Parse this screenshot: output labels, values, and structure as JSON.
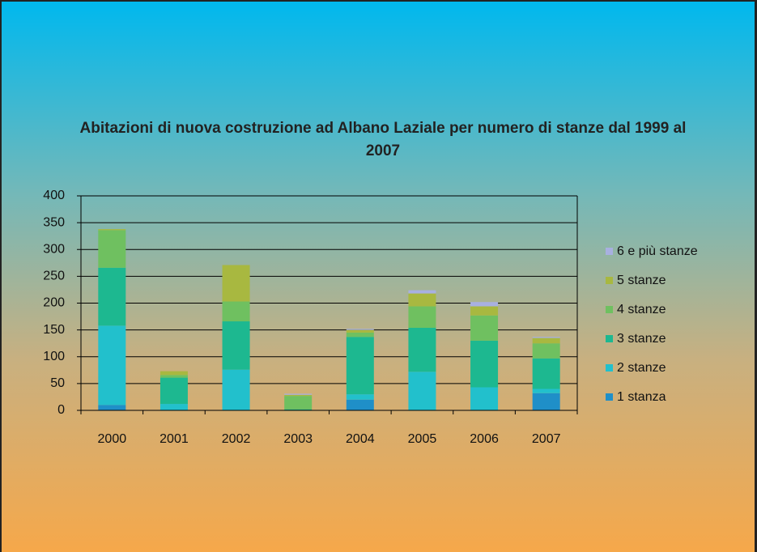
{
  "chart_data": {
    "type": "stacked-bar",
    "title": "Abitazioni di nuova costruzione ad Albano Laziale per numero di stanze dal 1999 al 2007",
    "categories": [
      "2000",
      "2001",
      "2002",
      "2003",
      "2004",
      "2005",
      "2006",
      "2007"
    ],
    "series": [
      {
        "name": "1 stanza",
        "color": "#1f8fc8",
        "values": [
          10,
          0,
          0,
          0,
          20,
          0,
          0,
          32
        ]
      },
      {
        "name": "2 stanze",
        "color": "#22c0cc",
        "values": [
          148,
          12,
          76,
          0,
          10,
          72,
          43,
          8
        ]
      },
      {
        "name": "3 stanze",
        "color": "#1db890",
        "values": [
          108,
          49,
          90,
          2,
          107,
          82,
          87,
          57
        ]
      },
      {
        "name": "4 stanze",
        "color": "#6fc060",
        "values": [
          70,
          5,
          37,
          25,
          8,
          40,
          47,
          28
        ]
      },
      {
        "name": "5 stanze",
        "color": "#a8b840",
        "values": [
          2,
          7,
          68,
          2,
          5,
          24,
          17,
          10
        ]
      },
      {
        "name": "6 e più stanze",
        "color": "#a8b0e0",
        "values": [
          0,
          0,
          0,
          2,
          2,
          6,
          8,
          2
        ]
      }
    ],
    "ylim": [
      0,
      400
    ],
    "yticks": [
      0,
      50,
      100,
      150,
      200,
      250,
      300,
      350,
      400
    ],
    "grid": true,
    "legend": "right"
  }
}
